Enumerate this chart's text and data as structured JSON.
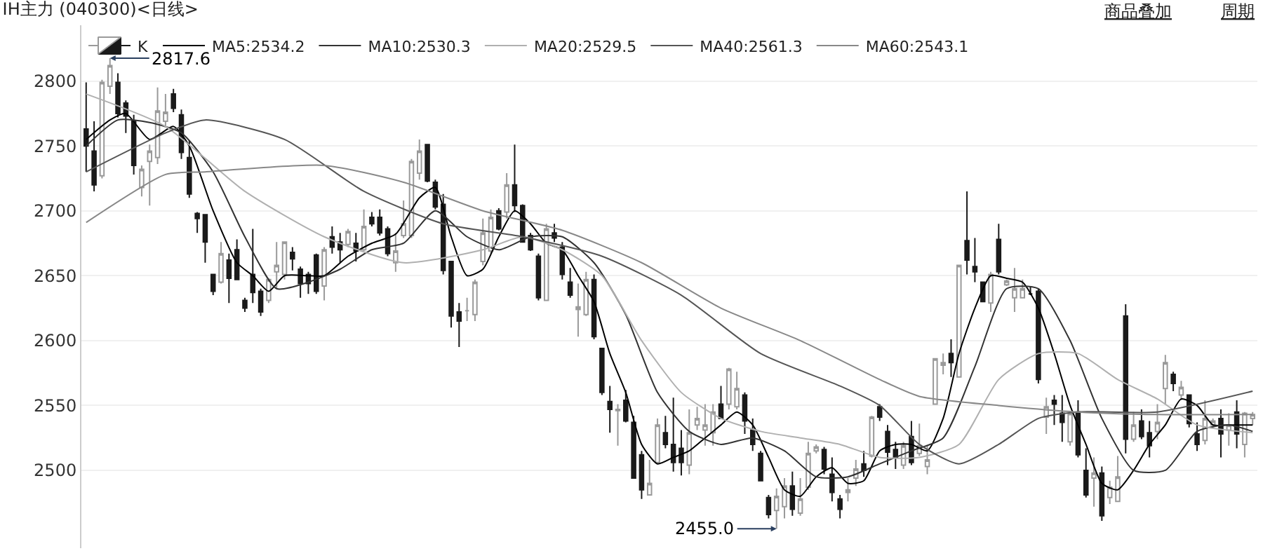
{
  "chart_data": {
    "type": "candlestick",
    "title": "IH主力 (040300)<日线>",
    "categories": [
      null,
      null,
      null,
      null,
      null,
      null,
      null,
      null,
      null,
      null,
      null,
      null,
      null,
      null,
      null,
      null,
      null,
      null,
      null,
      null,
      null,
      null,
      null,
      null,
      null,
      null,
      null,
      null,
      null,
      null,
      null,
      null,
      null,
      null,
      null,
      null,
      null,
      null,
      null,
      null,
      null,
      null,
      null,
      null,
      null,
      null,
      null,
      null,
      null,
      null,
      null,
      null,
      null,
      null,
      null,
      null,
      null,
      null,
      null,
      null,
      null,
      null,
      null,
      null,
      null,
      null,
      null,
      null,
      null,
      null,
      null,
      null,
      null,
      null,
      null,
      null,
      null,
      null,
      null,
      null,
      null,
      null,
      null,
      null,
      null,
      null,
      null,
      null,
      null,
      null,
      null,
      null,
      null,
      null,
      null,
      null,
      null,
      null,
      null,
      null,
      null,
      null,
      null,
      null,
      null,
      null,
      null,
      null,
      null,
      null,
      null,
      null,
      null,
      null,
      null,
      null,
      null,
      null,
      null,
      null,
      null,
      null,
      null,
      null,
      null,
      null,
      null,
      null,
      null,
      null,
      null,
      null,
      null,
      null,
      null,
      null,
      null,
      null,
      null,
      null,
      null,
      null,
      null,
      null,
      null,
      null,
      null,
      null
    ],
    "series": [
      {
        "name": "K",
        "ohlc": [
          [
            2763,
            2799,
            2730,
            2750
          ],
          [
            2746,
            2769,
            2715,
            2720
          ],
          [
            2727,
            2801,
            2725,
            2799
          ],
          [
            2796,
            2817.6,
            2790,
            2812
          ],
          [
            2799,
            2806,
            2772,
            2775
          ],
          [
            2783,
            2785,
            2760,
            2773
          ],
          [
            2769,
            2774,
            2728,
            2735
          ],
          [
            2718,
            2735,
            2711,
            2732
          ],
          [
            2738,
            2751,
            2704,
            2746
          ],
          [
            2741,
            2795,
            2736,
            2777
          ],
          [
            2769,
            2790,
            2765,
            2776
          ],
          [
            2790,
            2794,
            2776,
            2779
          ],
          [
            2774,
            2778,
            2740,
            2745
          ],
          [
            2741,
            2754,
            2710,
            2713
          ],
          [
            2698,
            2699,
            2683,
            2694
          ],
          [
            2697,
            2697,
            2660,
            2676
          ],
          [
            2651,
            2651,
            2635,
            2638
          ],
          [
            2645,
            2676,
            2644,
            2667
          ],
          [
            2662,
            2667,
            2629,
            2648
          ],
          [
            2670,
            2678,
            2647,
            2647
          ],
          [
            2631,
            2633,
            2622,
            2625
          ],
          [
            2651,
            2686,
            2629,
            2637
          ],
          [
            2638,
            2640,
            2619,
            2622
          ],
          [
            2631,
            2648,
            2629,
            2647
          ],
          [
            2653,
            2676,
            2640,
            2658
          ],
          [
            2651,
            2676,
            2647,
            2676
          ],
          [
            2668,
            2672,
            2654,
            2663
          ],
          [
            2655,
            2657,
            2633,
            2644
          ],
          [
            2651,
            2653,
            2636,
            2644
          ],
          [
            2666,
            2667,
            2636,
            2638
          ],
          [
            2642,
            2672,
            2631,
            2670
          ],
          [
            2680,
            2688,
            2667,
            2672
          ],
          [
            2676,
            2683,
            2660,
            2670
          ],
          [
            2674,
            2686,
            2672,
            2684
          ],
          [
            2675,
            2683,
            2661,
            2669
          ],
          [
            2670,
            2701,
            2669,
            2688
          ],
          [
            2695,
            2699,
            2688,
            2690
          ],
          [
            2695,
            2701,
            2681,
            2683
          ],
          [
            2686,
            2688,
            2665,
            2667
          ],
          [
            2660,
            2683,
            2653,
            2669
          ],
          [
            2681,
            2708,
            2679,
            2690
          ],
          [
            2681,
            2740,
            2679,
            2738
          ],
          [
            2729,
            2755,
            2724,
            2746
          ],
          [
            2751,
            2751,
            2722,
            2723
          ],
          [
            2722,
            2724,
            2701,
            2703
          ],
          [
            2705,
            2713,
            2651,
            2654
          ],
          [
            2661,
            2661,
            2610,
            2619
          ],
          [
            2622,
            2629,
            2595,
            2615
          ],
          [
            2623,
            2633,
            2615,
            2623
          ],
          [
            2620,
            2647,
            2615,
            2645
          ],
          [
            2661,
            2694,
            2658,
            2683
          ],
          [
            2669,
            2701,
            2667,
            2695
          ],
          [
            2700,
            2702,
            2685,
            2686
          ],
          [
            2699,
            2729,
            2694,
            2720
          ],
          [
            2720,
            2751,
            2699,
            2704
          ],
          [
            2704,
            2705,
            2676,
            2676
          ],
          [
            2681,
            2683,
            2669,
            2670
          ],
          [
            2665,
            2667,
            2631,
            2633
          ],
          [
            2631,
            2690,
            2631,
            2686
          ],
          [
            2683,
            2690,
            2676,
            2679
          ],
          [
            2672,
            2676,
            2647,
            2651
          ],
          [
            2645,
            2656,
            2633,
            2635
          ],
          [
            2624,
            2644,
            2603,
            2626
          ],
          [
            2620,
            2653,
            2619,
            2647
          ],
          [
            2647,
            2651,
            2601,
            2603
          ],
          [
            2594,
            2594,
            2558,
            2560
          ],
          [
            2553,
            2565,
            2529,
            2547
          ],
          [
            2546,
            2551,
            2519,
            2547
          ],
          [
            2554,
            2562,
            2537,
            2538
          ],
          [
            2537,
            2542,
            2494,
            2494
          ],
          [
            2512,
            2515,
            2478,
            2485
          ],
          [
            2481,
            2508,
            2481,
            2490
          ],
          [
            2506,
            2540,
            2506,
            2535
          ],
          [
            2529,
            2542,
            2517,
            2520
          ],
          [
            2520,
            2556,
            2499,
            2506
          ],
          [
            2517,
            2531,
            2496,
            2506
          ],
          [
            2504,
            2547,
            2497,
            2529
          ],
          [
            2535,
            2549,
            2531,
            2540
          ],
          [
            2531,
            2551,
            2519,
            2535
          ],
          [
            2529,
            2551,
            2519,
            2545
          ],
          [
            2551,
            2565,
            2540,
            2540
          ],
          [
            2551,
            2579,
            2547,
            2578
          ],
          [
            2549,
            2576,
            2547,
            2563
          ],
          [
            2558,
            2560,
            2528,
            2538
          ],
          [
            2531,
            2540,
            2515,
            2520
          ],
          [
            2513,
            2515,
            2492,
            2492
          ],
          [
            2479,
            2481,
            2463,
            2466
          ],
          [
            2469,
            2486,
            2455.0,
            2480
          ],
          [
            2472,
            2494,
            2463,
            2488
          ],
          [
            2488,
            2499,
            2465,
            2470
          ],
          [
            2467,
            2494,
            2465,
            2478
          ],
          [
            2487,
            2522,
            2485,
            2513
          ],
          [
            2515,
            2520,
            2513,
            2518
          ],
          [
            2516,
            2518,
            2497,
            2501
          ],
          [
            2497,
            2510,
            2476,
            2483
          ],
          [
            2478,
            2481,
            2463,
            2470
          ],
          [
            2483,
            2494,
            2476,
            2485
          ],
          [
            2494,
            2508,
            2488,
            2501
          ],
          [
            2505,
            2515,
            2495,
            2500
          ],
          [
            2511,
            2542,
            2510,
            2541
          ],
          [
            2549,
            2551,
            2538,
            2541
          ],
          [
            2530,
            2535,
            2504,
            2514
          ],
          [
            2516,
            2522,
            2501,
            2510
          ],
          [
            2504,
            2522,
            2501,
            2519
          ],
          [
            2526,
            2538,
            2504,
            2506
          ],
          [
            2513,
            2536,
            2511,
            2519
          ],
          [
            2503,
            2519,
            2497,
            2508
          ],
          [
            2551,
            2586,
            2551,
            2586
          ],
          [
            2581,
            2590,
            2574,
            2583
          ],
          [
            2590,
            2601,
            2572,
            2583
          ],
          [
            2572,
            2658,
            2572,
            2658
          ],
          [
            2677,
            2715,
            2651,
            2662
          ],
          [
            2657,
            2679,
            2645,
            2653
          ],
          [
            2645,
            2645,
            2630,
            2630
          ],
          [
            2629,
            2653,
            2622,
            2651
          ],
          [
            2678,
            2690,
            2651,
            2653
          ],
          [
            2643,
            2647,
            2642,
            2646
          ],
          [
            2633,
            2656,
            2622,
            2640
          ],
          [
            2633,
            2647,
            2633,
            2640
          ],
          [
            2636,
            2642,
            2635,
            2636
          ],
          [
            2638,
            2640,
            2567,
            2570
          ],
          [
            2541,
            2556,
            2528,
            2549
          ],
          [
            2554,
            2558,
            2535,
            2551
          ],
          [
            2544,
            2558,
            2522,
            2537
          ],
          [
            2522,
            2545,
            2519,
            2544
          ],
          [
            2545,
            2554,
            2510,
            2512
          ],
          [
            2500,
            2517,
            2479,
            2481
          ],
          [
            2494,
            2510,
            2472,
            2498
          ],
          [
            2498,
            2503,
            2461,
            2465
          ],
          [
            2479,
            2492,
            2474,
            2487
          ],
          [
            2476,
            2511,
            2476,
            2495
          ],
          [
            2619,
            2628,
            2513,
            2524
          ],
          [
            2524,
            2545,
            2522,
            2535
          ],
          [
            2538,
            2547,
            2524,
            2526
          ],
          [
            2529,
            2538,
            2510,
            2519
          ],
          [
            2530,
            2551,
            2524,
            2537
          ],
          [
            2563,
            2589,
            2551,
            2583
          ],
          [
            2574,
            2576,
            2561,
            2567
          ],
          [
            2558,
            2569,
            2554,
            2564
          ],
          [
            2558,
            2558,
            2533,
            2536
          ],
          [
            2528,
            2537,
            2515,
            2520
          ],
          [
            2523,
            2554,
            2520,
            2540
          ],
          [
            2535,
            2540,
            2533,
            2538
          ],
          [
            2540,
            2547,
            2510,
            2528
          ],
          [
            2531,
            2544,
            2519,
            2535
          ],
          [
            2545,
            2554,
            2517,
            2528
          ],
          [
            2520,
            2545,
            2510,
            2544
          ],
          [
            2540,
            2545,
            2535,
            2543
          ]
        ]
      },
      {
        "type": "line",
        "name": "MA5:2534.2",
        "color": "#000000",
        "values": [
          2755,
          null,
          null,
          2770,
          null,
          2775,
          null,
          null,
          2755,
          null,
          null,
          2765,
          null,
          2750,
          null,
          null,
          2700,
          null,
          null,
          2660,
          null,
          2650,
          null,
          2638,
          null,
          2650,
          null,
          null,
          2650,
          null,
          2650,
          null,
          null,
          2665,
          null,
          null,
          2675,
          null,
          null,
          2682,
          null,
          null,
          2710,
          null,
          2718,
          null,
          2680,
          null,
          2650,
          null,
          2655,
          null,
          2680,
          null,
          2700,
          null,
          2690,
          null,
          2675,
          null,
          2670,
          null,
          2650,
          null,
          2630,
          null,
          2590,
          null,
          2560,
          null,
          2520,
          null,
          2505,
          null,
          2510,
          null,
          2515,
          null,
          2525,
          null,
          2535,
          null,
          2545,
          null,
          2535,
          null,
          2510,
          null,
          2485,
          null,
          2480,
          null,
          2495,
          null,
          2502,
          null,
          2490,
          null,
          2492,
          null,
          2515,
          null,
          2520,
          null,
          2520,
          null,
          2515,
          null,
          2540,
          null,
          2590,
          null,
          2625,
          null,
          2650,
          null,
          2648,
          null,
          2645,
          null,
          2625,
          null,
          2590,
          null,
          2550,
          null,
          2520,
          null,
          2490,
          null,
          2485,
          null,
          2500,
          null,
          2520,
          null,
          2535,
          null,
          2555,
          null,
          2550,
          null,
          2535,
          null,
          2535,
          null,
          null,
          2535
        ]
      },
      {
        "type": "line",
        "name": "MA10:2530.3",
        "color": "#333333",
        "values": [
          2750,
          null,
          null,
          null,
          2770,
          null,
          null,
          null,
          2768,
          null,
          null,
          null,
          2760,
          null,
          null,
          null,
          2730,
          null,
          null,
          null,
          2680,
          null,
          null,
          null,
          2640,
          null,
          null,
          null,
          2645,
          null,
          null,
          null,
          2655,
          null,
          null,
          null,
          2670,
          null,
          null,
          null,
          2675,
          null,
          null,
          null,
          2700,
          null,
          null,
          null,
          2680,
          null,
          null,
          null,
          2670,
          null,
          null,
          null,
          2680,
          null,
          null,
          null,
          2680,
          null,
          null,
          null,
          2660,
          null,
          null,
          null,
          2620,
          null,
          null,
          null,
          2560,
          null,
          null,
          null,
          2530,
          null,
          null,
          null,
          2520,
          null,
          null,
          null,
          2525,
          null,
          null,
          null,
          2515,
          null,
          null,
          null,
          2495,
          null,
          null,
          null,
          2495,
          null,
          null,
          null,
          2505,
          null,
          null,
          null,
          2515,
          null,
          null,
          null,
          2525,
          null,
          null,
          null,
          2580,
          null,
          null,
          null,
          2640,
          null,
          null,
          null,
          2640,
          null,
          null,
          null,
          2600,
          null,
          null,
          null,
          2540,
          null,
          null,
          null,
          2500,
          null,
          null,
          null,
          2500,
          null,
          null,
          null,
          2530,
          null,
          null,
          null,
          2535,
          null,
          null,
          2530
        ]
      },
      {
        "type": "line",
        "name": "MA20:2529.5",
        "color": "#b0b0b0",
        "values": [
          2790,
          null,
          null,
          null,
          null,
          null,
          null,
          null,
          null,
          null,
          2765,
          null,
          null,
          null,
          null,
          null,
          null,
          null,
          null,
          null,
          2715,
          null,
          null,
          null,
          null,
          null,
          null,
          null,
          null,
          null,
          2680,
          null,
          null,
          null,
          null,
          null,
          null,
          null,
          null,
          null,
          2660,
          null,
          null,
          null,
          null,
          null,
          null,
          null,
          null,
          null,
          2670,
          null,
          null,
          null,
          null,
          2680,
          null,
          null,
          null,
          null,
          2670,
          null,
          null,
          null,
          null,
          2650,
          null,
          null,
          null,
          null,
          2600,
          null,
          null,
          null,
          null,
          2560,
          null,
          null,
          null,
          null,
          2540,
          null,
          null,
          null,
          null,
          2530,
          null,
          null,
          null,
          null,
          2525,
          null,
          null,
          null,
          null,
          2520,
          null,
          null,
          null,
          null,
          2510,
          null,
          null,
          null,
          null,
          2510,
          null,
          null,
          null,
          null,
          2520,
          null,
          null,
          null,
          null,
          2570,
          null,
          null,
          null,
          null,
          2590,
          null,
          null,
          null,
          null,
          2590,
          null,
          null,
          null,
          null,
          2570,
          null,
          null,
          null,
          null,
          2555,
          null,
          null,
          null,
          null,
          2535,
          null,
          null,
          null,
          null,
          null,
          null,
          2529
        ]
      },
      {
        "type": "line",
        "name": "MA40:2561.3",
        "color": "#555555",
        "values": [
          2730,
          null,
          null,
          null,
          null,
          null,
          null,
          null,
          null,
          null,
          2760,
          null,
          null,
          null,
          null,
          2770,
          null,
          null,
          null,
          null,
          null,
          null,
          null,
          null,
          null,
          2755,
          null,
          null,
          null,
          null,
          null,
          null,
          null,
          null,
          null,
          2715,
          null,
          null,
          null,
          null,
          null,
          null,
          null,
          null,
          null,
          2690,
          null,
          null,
          null,
          null,
          null,
          null,
          null,
          null,
          null,
          2680,
          null,
          null,
          null,
          null,
          null,
          null,
          null,
          null,
          null,
          2665,
          null,
          null,
          null,
          null,
          null,
          null,
          null,
          null,
          null,
          2635,
          null,
          null,
          null,
          null,
          null,
          null,
          null,
          null,
          null,
          2590,
          null,
          null,
          null,
          null,
          null,
          null,
          null,
          null,
          null,
          2565,
          null,
          null,
          null,
          null,
          2550,
          null,
          null,
          null,
          null,
          2520,
          null,
          null,
          null,
          null,
          2505,
          null,
          null,
          null,
          null,
          2520,
          null,
          null,
          null,
          null,
          2540,
          null,
          null,
          null,
          null,
          2545,
          null,
          null,
          null,
          null,
          null,
          null,
          null,
          null,
          null,
          2545,
          null,
          null,
          null,
          null,
          null,
          null,
          null,
          null,
          null,
          null,
          null,
          2561
        ]
      },
      {
        "type": "line",
        "name": "MA60:2543.1",
        "color": "#888888",
        "values": [
          2691,
          null,
          null,
          null,
          null,
          null,
          null,
          null,
          null,
          null,
          2728,
          null,
          null,
          null,
          null,
          2730,
          null,
          null,
          null,
          null,
          null,
          null,
          null,
          null,
          null,
          null,
          null,
          null,
          null,
          null,
          2735,
          null,
          null,
          null,
          null,
          null,
          null,
          null,
          null,
          null,
          2722,
          null,
          null,
          null,
          null,
          null,
          null,
          null,
          null,
          null,
          2700,
          null,
          null,
          null,
          null,
          null,
          null,
          null,
          null,
          null,
          2685,
          null,
          null,
          null,
          null,
          null,
          null,
          null,
          null,
          null,
          2660,
          null,
          null,
          null,
          null,
          null,
          null,
          null,
          null,
          null,
          2625,
          null,
          null,
          null,
          null,
          null,
          null,
          null,
          null,
          null,
          2600,
          null,
          null,
          null,
          null,
          null,
          null,
          null,
          null,
          null,
          2570,
          null,
          null,
          null,
          null,
          2557,
          null,
          null,
          null,
          null,
          null,
          null,
          null,
          null,
          null,
          2550,
          null,
          null,
          null,
          null,
          null,
          null,
          null,
          null,
          null,
          2545,
          null,
          null,
          null,
          null,
          null,
          null,
          null,
          null,
          null,
          2543,
          null,
          null,
          null,
          null,
          null,
          null,
          null,
          null,
          null,
          null,
          null,
          2543
        ]
      }
    ],
    "ylim": [
      2440,
      2843
    ],
    "yticks": [
      2500,
      2550,
      2600,
      2650,
      2700,
      2750,
      2800
    ],
    "grid": "y",
    "legend": "top left",
    "marker": "none",
    "line_style": "solid",
    "tick_labels": "y",
    "annotations": [
      "2817.6",
      "2455.0",
      "商品叠加",
      "周期"
    ]
  }
}
